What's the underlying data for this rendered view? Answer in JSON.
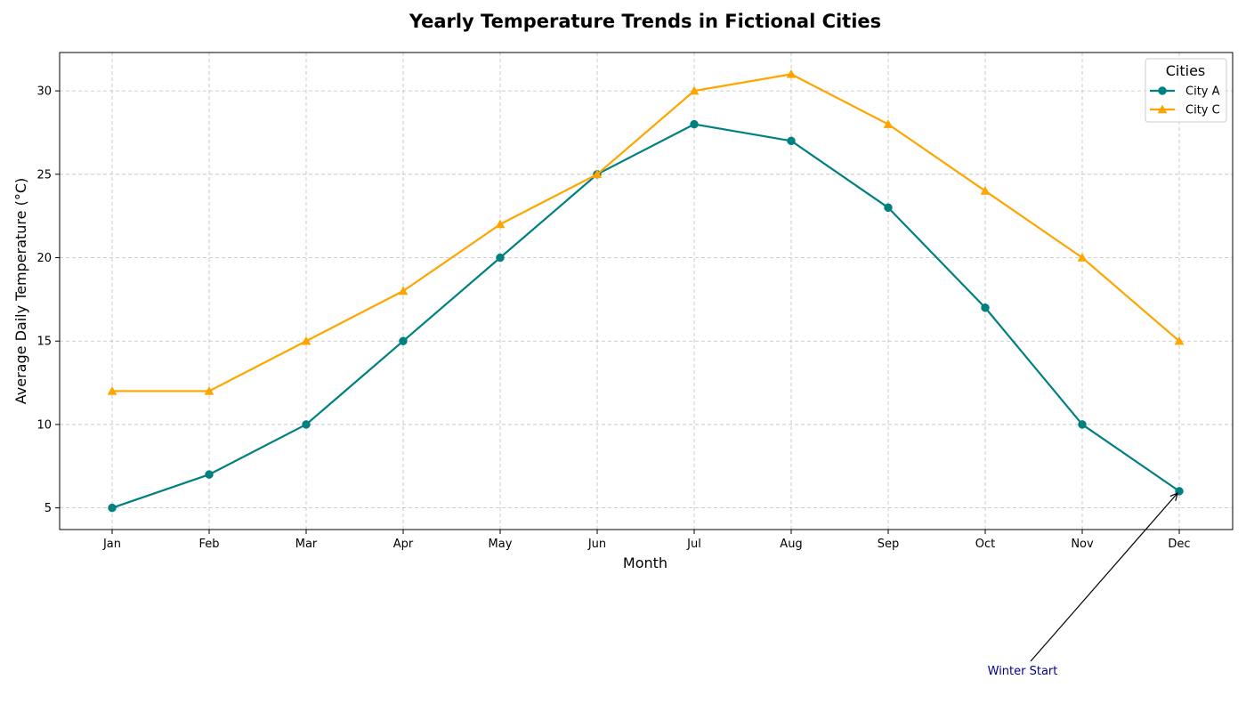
{
  "chart_data": {
    "type": "line",
    "title": "Yearly Temperature Trends in Fictional Cities",
    "xlabel": "Month",
    "ylabel": "Average Daily Temperature (°C)",
    "categories": [
      "Jan",
      "Feb",
      "Mar",
      "Apr",
      "May",
      "Jun",
      "Jul",
      "Aug",
      "Sep",
      "Oct",
      "Nov",
      "Dec"
    ],
    "ylim": [
      3.7,
      32.3
    ],
    "yticks": [
      5,
      10,
      15,
      20,
      25,
      30
    ],
    "grid": true,
    "legend": {
      "title": "Cities",
      "placement": "top-right"
    },
    "series": [
      {
        "name": "City A",
        "color": "#008080",
        "marker": "circle",
        "values": [
          5,
          7,
          10,
          15,
          20,
          25,
          28,
          27,
          23,
          17,
          10,
          6
        ]
      },
      {
        "name": "City C",
        "color": "#FFA500",
        "marker": "triangle",
        "values": [
          12,
          12,
          15,
          18,
          22,
          25,
          30,
          31,
          28,
          24,
          20,
          15
        ]
      }
    ],
    "annotations": [
      {
        "text": "Winter Start",
        "color": "#00008B",
        "point_category": "Dec",
        "point_value": 6
      }
    ]
  }
}
